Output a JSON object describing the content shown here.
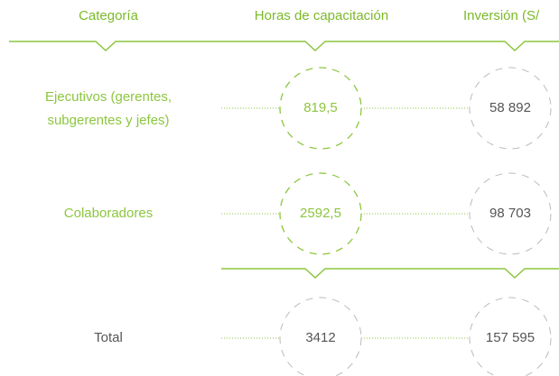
{
  "header": {
    "columns": [
      "Categoría",
      "Horas de capacitación",
      "Inversión (S/"
    ]
  },
  "table": {
    "rows": [
      {
        "category": [
          "Ejecutivos (gerentes,",
          "subgerentes y jefes)"
        ],
        "hours": "819,5",
        "investment": "58 892"
      },
      {
        "category": [
          "Colaboradores"
        ],
        "hours": "2592,5",
        "investment": "98 703"
      }
    ]
  },
  "total": {
    "label": "Total",
    "hours": "3412",
    "investment": "157 595"
  }
}
